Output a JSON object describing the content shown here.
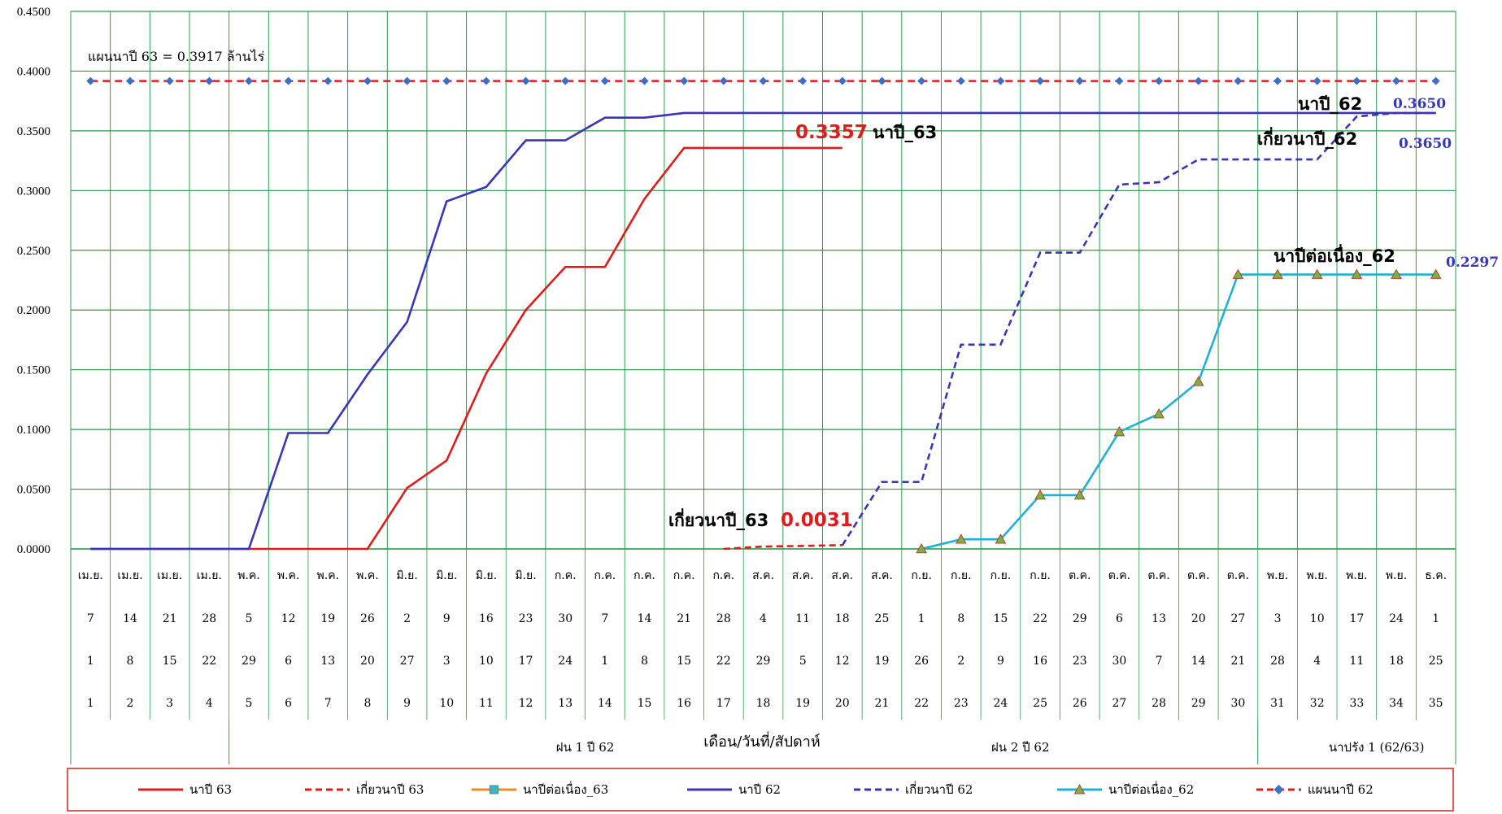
{
  "chart_data": {
    "type": "line",
    "ylim": [
      0,
      0.45
    ],
    "yticks": [
      "0.0000",
      "0.0500",
      "0.1000",
      "0.1500",
      "0.2000",
      "0.2500",
      "0.3000",
      "0.3500",
      "0.4000",
      "0.4500"
    ],
    "months": [
      "เม.ย.",
      "เม.ย.",
      "เม.ย.",
      "เม.ย.",
      "พ.ค.",
      "พ.ค.",
      "พ.ค.",
      "พ.ค.",
      "มิ.ย.",
      "มิ.ย.",
      "มิ.ย.",
      "มิ.ย.",
      "ก.ค.",
      "ก.ค.",
      "ก.ค.",
      "ก.ค.",
      "ก.ค.",
      "ส.ค.",
      "ส.ค.",
      "ส.ค.",
      "ส.ค.",
      "ก.ย.",
      "ก.ย.",
      "ก.ย.",
      "ก.ย.",
      "ต.ค.",
      "ต.ค.",
      "ต.ค.",
      "ต.ค.",
      "ต.ค.",
      "พ.ย.",
      "พ.ย.",
      "พ.ย.",
      "พ.ย.",
      "ธ.ค."
    ],
    "dates_62": [
      "7",
      "14",
      "21",
      "28",
      "5",
      "12",
      "19",
      "26",
      "2",
      "9",
      "16",
      "23",
      "30",
      "7",
      "14",
      "21",
      "28",
      "4",
      "11",
      "18",
      "25",
      "1",
      "8",
      "15",
      "22",
      "29",
      "6",
      "13",
      "20",
      "27",
      "3",
      "10",
      "17",
      "24",
      "1"
    ],
    "dates_63": [
      "1",
      "8",
      "15",
      "22",
      "29",
      "6",
      "13",
      "20",
      "27",
      "3",
      "10",
      "17",
      "24",
      "1",
      "8",
      "15",
      "22",
      "29",
      "5",
      "12",
      "19",
      "26",
      "2",
      "9",
      "16",
      "23",
      "30",
      "7",
      "14",
      "21",
      "28",
      "4",
      "11",
      "18",
      "25"
    ],
    "weeks": [
      "1",
      "2",
      "3",
      "4",
      "5",
      "6",
      "7",
      "8",
      "9",
      "10",
      "11",
      "12",
      "13",
      "14",
      "15",
      "16",
      "17",
      "18",
      "19",
      "20",
      "21",
      "22",
      "23",
      "24",
      "25",
      "26",
      "27",
      "28",
      "29",
      "30",
      "31",
      "32",
      "33",
      "34",
      "35"
    ],
    "xlabel": "เดือน/วันที่/สัปดาห์",
    "groups": [
      {
        "label": "ฝน 1 ปี 62",
        "from": 5,
        "to": 30
      },
      {
        "label": "ฝน 2 ปี 62",
        "from": 22,
        "to": 30
      },
      {
        "label": "นาปรัง 1 (62/63)",
        "from": 31,
        "to": 35
      }
    ],
    "series": [
      {
        "name": "นาปี 63",
        "color": "#e01b1b",
        "style": "solid",
        "marker": "none",
        "values": [
          0,
          0,
          0,
          0,
          0,
          0,
          0,
          0,
          0.051,
          0.074,
          0.147,
          0.2,
          0.236,
          0.236,
          0.293,
          0.3357,
          0.3357,
          0.3357,
          0.3357,
          0.3357,
          null,
          null,
          null,
          null,
          null,
          null,
          null,
          null,
          null,
          null,
          null,
          null,
          null,
          null,
          null
        ]
      },
      {
        "name": "เกี่ยวนาปี 63",
        "color": "#e01b1b",
        "style": "dashed",
        "marker": "none",
        "values": [
          null,
          null,
          null,
          null,
          null,
          null,
          null,
          null,
          null,
          null,
          null,
          null,
          null,
          null,
          null,
          null,
          0,
          0.002,
          0.0025,
          0.0031,
          null,
          null,
          null,
          null,
          null,
          null,
          null,
          null,
          null,
          null,
          null,
          null,
          null,
          null,
          null
        ]
      },
      {
        "name": "นาปีต่อเนื่อง_63",
        "color": "#f08a24",
        "style": "solid",
        "marker": "square",
        "values": []
      },
      {
        "name": "นาปี 62",
        "color": "#3a35b8",
        "style": "solid",
        "marker": "none",
        "values": [
          0,
          0,
          0,
          0,
          0,
          0.097,
          0.097,
          0.146,
          0.19,
          0.291,
          0.303,
          0.342,
          0.342,
          0.361,
          0.361,
          0.365,
          0.365,
          0.365,
          0.365,
          0.365,
          0.365,
          0.365,
          0.365,
          0.365,
          0.365,
          0.365,
          0.365,
          0.365,
          0.365,
          0.365,
          0.365,
          0.365,
          0.365,
          0.365,
          0.365
        ]
      },
      {
        "name": "เกี่ยวนาปี 62",
        "color": "#3a35b8",
        "style": "dashed",
        "marker": "none",
        "values": [
          null,
          null,
          null,
          null,
          null,
          null,
          null,
          null,
          null,
          null,
          null,
          null,
          null,
          null,
          null,
          null,
          null,
          null,
          null,
          0.003,
          0.056,
          0.056,
          0.171,
          0.171,
          0.248,
          0.248,
          0.305,
          0.307,
          0.326,
          0.326,
          0.326,
          0.326,
          0.362,
          0.365,
          0.365
        ]
      },
      {
        "name": "นาปีต่อเนื่อง_62",
        "color": "#1fb0d8",
        "style": "solid",
        "marker": "triangle",
        "values": [
          null,
          null,
          null,
          null,
          null,
          null,
          null,
          null,
          null,
          null,
          null,
          null,
          null,
          null,
          null,
          null,
          null,
          null,
          null,
          null,
          null,
          0,
          0.008,
          0.008,
          0.045,
          0.045,
          0.098,
          0.113,
          0.14,
          0.2297,
          0.2297,
          0.2297,
          0.2297,
          0.2297,
          0.2297
        ]
      },
      {
        "name": "แผนนาปี 62",
        "color": "#e01b1b",
        "style": "dashed",
        "marker": "diamond",
        "markerColor": "#3d6fc4",
        "values": [
          0.3917,
          0.3917,
          0.3917,
          0.3917,
          0.3917,
          0.3917,
          0.3917,
          0.3917,
          0.3917,
          0.3917,
          0.3917,
          0.3917,
          0.3917,
          0.3917,
          0.3917,
          0.3917,
          0.3917,
          0.3917,
          0.3917,
          0.3917,
          0.3917,
          0.3917,
          0.3917,
          0.3917,
          0.3917,
          0.3917,
          0.3917,
          0.3917,
          0.3917,
          0.3917,
          0.3917,
          0.3917,
          0.3917,
          0.3917,
          0.3917
        ]
      }
    ],
    "annotations": {
      "plan": "แผนนาปี 63 = 0.3917 ล้านไร่",
      "napi63_value": "0.3357",
      "napi63_name": "นาปี_63",
      "harvest63_name": "เกี่ยวนาปี_63",
      "harvest63_value": "0.0031",
      "napi62_name": "นาปี_62",
      "napi62_value": "0.3650",
      "harvest62_name": "เกี่ยวนาปี_62",
      "harvest62_value": "0.3650",
      "cont62_name": "นาปีต่อเนื่อง_62",
      "cont62_value": "0.2297"
    },
    "legend": [
      "นาปี 63",
      "เกี่ยวนาปี 63",
      "นาปีต่อเนื่อง_63",
      "นาปี 62",
      "เกี่ยวนาปี 62",
      "นาปีต่อเนื่อง_62",
      "แผนนาปี 62"
    ],
    "legend_position": "bottom",
    "grid": true
  }
}
